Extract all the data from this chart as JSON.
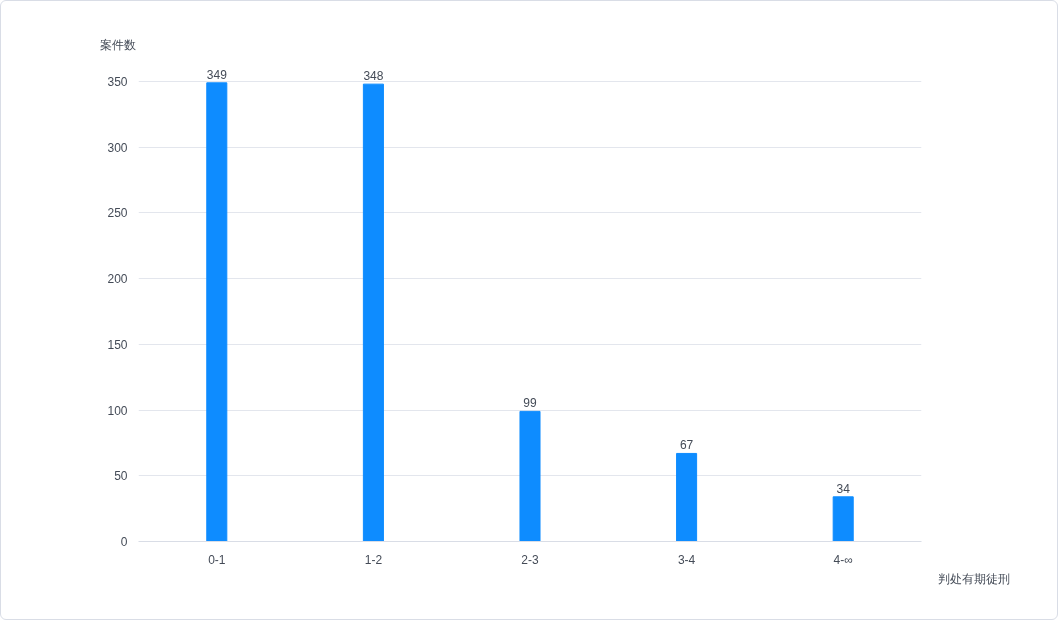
{
  "chart_data": {
    "type": "bar",
    "xlabel": "判处有期徒刑",
    "ylabel": "案件数",
    "categories": [
      "0-1",
      "1-2",
      "2-3",
      "3-4",
      "4-∞"
    ],
    "values": [
      349,
      348,
      99,
      67,
      34
    ],
    "color": "#0e8cff",
    "ylim": [
      0,
      350
    ],
    "yticks": [
      0,
      50,
      100,
      150,
      200,
      250,
      300,
      350
    ],
    "grid": "y",
    "data_labels": true,
    "legend": false
  }
}
